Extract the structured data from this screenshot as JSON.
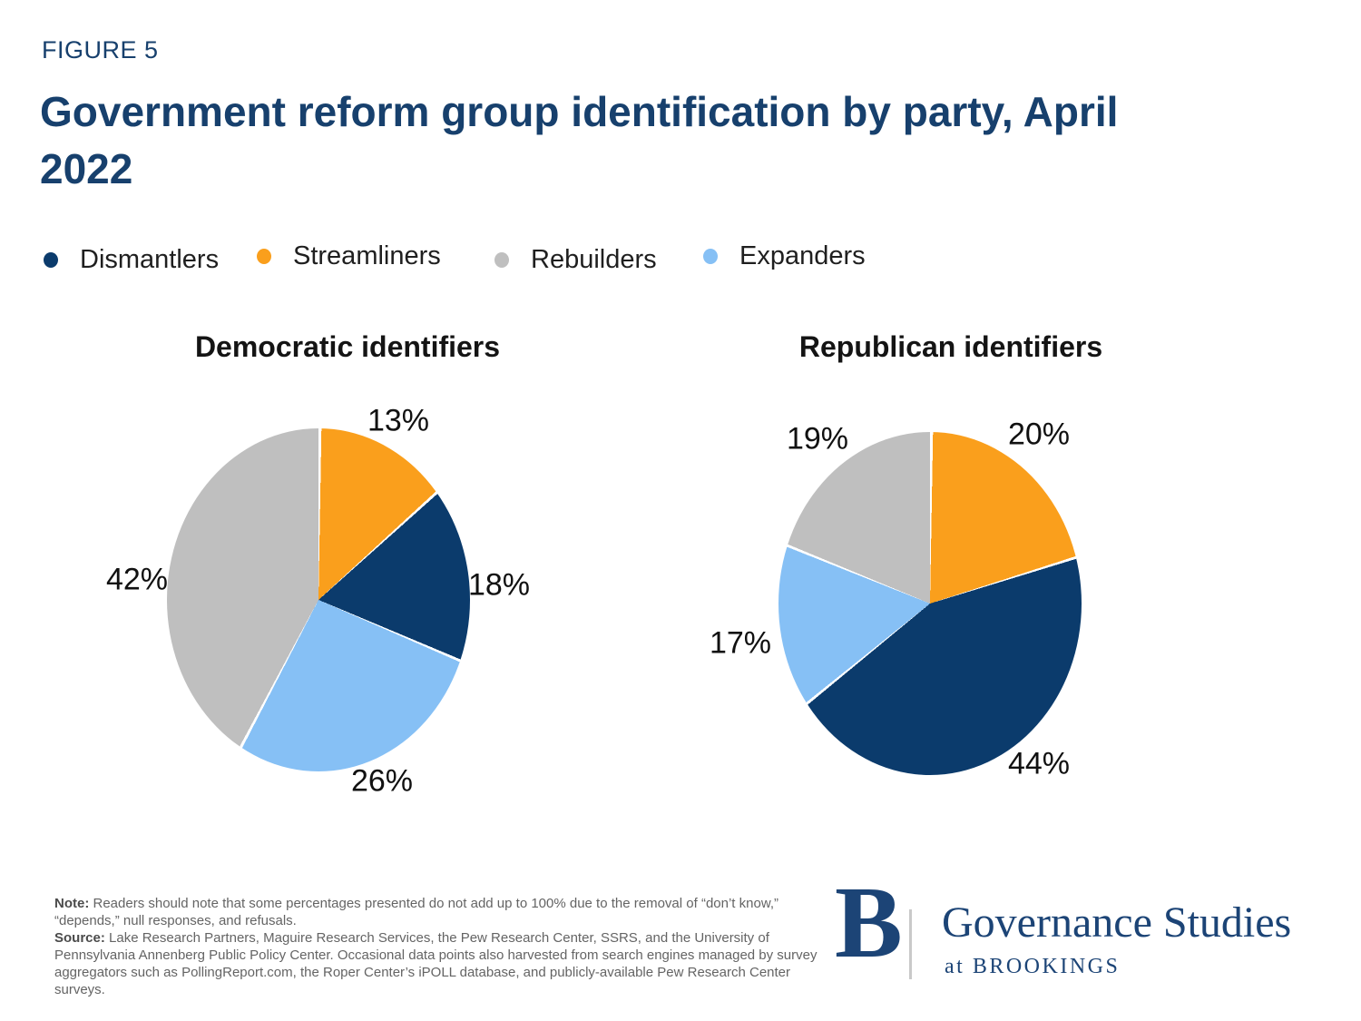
{
  "figure_label": "FIGURE 5",
  "title": "Government reform group identification by party, April 2022",
  "group_colors": {
    "Dismantlers": "#0B3B6C",
    "Streamliners": "#FA9F1C",
    "Rebuilders": "#BFBFBF",
    "Expanders": "#86C0F5"
  },
  "legend": [
    {
      "label": "Dismantlers",
      "color": "#0B3B6C"
    },
    {
      "label": "Streamliners",
      "color": "#FA9F1C"
    },
    {
      "label": "Rebuilders",
      "color": "#BFBFBF"
    },
    {
      "label": "Expanders",
      "color": "#86C0F5"
    }
  ],
  "chart_data": [
    {
      "type": "pie",
      "title": "Democratic identifiers",
      "start_angle_deg": 0,
      "direction": "clockwise",
      "legend_position": "top-left",
      "slices": [
        {
          "group": "Streamliners",
          "value": 13,
          "label": "13%"
        },
        {
          "group": "Dismantlers",
          "value": 18,
          "label": "18%"
        },
        {
          "group": "Expanders",
          "value": 26,
          "label": "26%"
        },
        {
          "group": "Rebuilders",
          "value": 42,
          "label": "42%"
        }
      ]
    },
    {
      "type": "pie",
      "title": "Republican identifiers",
      "start_angle_deg": 0,
      "direction": "clockwise",
      "legend_position": "top-left",
      "slices": [
        {
          "group": "Streamliners",
          "value": 20,
          "label": "20%"
        },
        {
          "group": "Dismantlers",
          "value": 44,
          "label": "44%"
        },
        {
          "group": "Expanders",
          "value": 17,
          "label": "17%"
        },
        {
          "group": "Rebuilders",
          "value": 19,
          "label": "19%"
        }
      ]
    }
  ],
  "note": {
    "label": "Note:",
    "text": " Readers should note that some percentages presented do not add up to 100% due to the removal of “don’t know,” “depends,” null responses, and refusals."
  },
  "source": {
    "label": "Source:",
    "text": " Lake Research Partners, Maguire Research Services, the Pew Research Center, SSRS, and the University of Pennsylvania Annenberg Public Policy Center. Occasional data points also harvested from search engines managed by survey aggregators such as PollingReport.com, the Roper Center’s iPOLL database, and publicly-available Pew Research Center surveys."
  },
  "logo": {
    "monogram": "B",
    "name": "Governance Studies",
    "tagline": "at BROOKINGS"
  }
}
